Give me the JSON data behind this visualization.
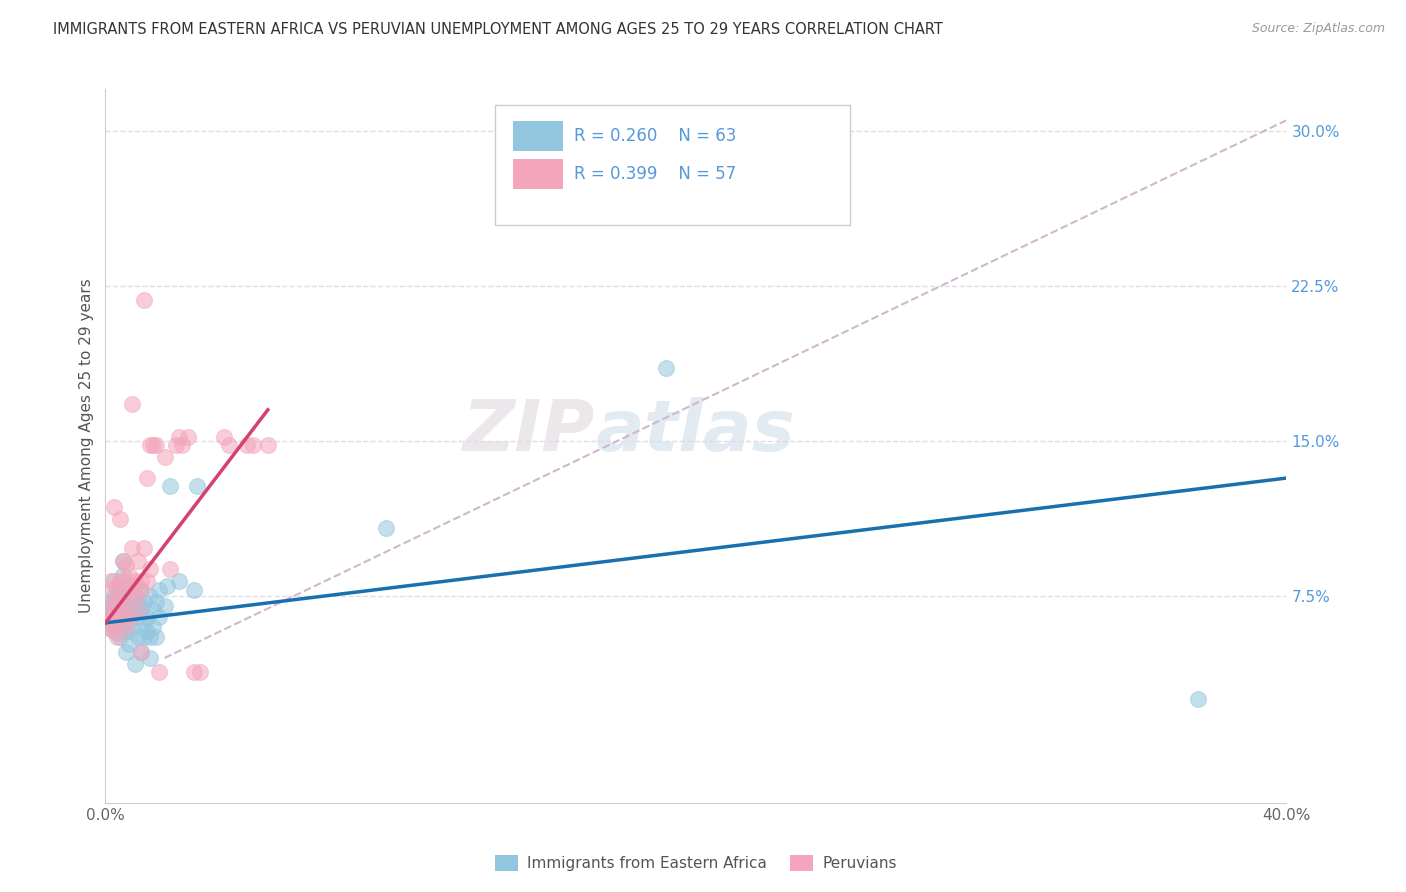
{
  "title": "IMMIGRANTS FROM EASTERN AFRICA VS PERUVIAN UNEMPLOYMENT AMONG AGES 25 TO 29 YEARS CORRELATION CHART",
  "source": "Source: ZipAtlas.com",
  "ylabel": "Unemployment Among Ages 25 to 29 years",
  "xlim": [
    0.0,
    0.4
  ],
  "ylim": [
    -0.025,
    0.32
  ],
  "xtick_positions": [
    0.0,
    0.08,
    0.16,
    0.24,
    0.32,
    0.4
  ],
  "xticklabels": [
    "0.0%",
    "",
    "",
    "",
    "",
    "40.0%"
  ],
  "yticks_right": [
    0.075,
    0.15,
    0.225,
    0.3
  ],
  "ytick_right_labels": [
    "7.5%",
    "15.0%",
    "22.5%",
    "30.0%"
  ],
  "legend_labels": [
    "Immigrants from Eastern Africa",
    "Peruvians"
  ],
  "blue_color": "#92c5de",
  "pink_color": "#f4a5bb",
  "blue_line_color": "#1a6faf",
  "pink_line_color": "#d44070",
  "dashed_line_color": "#d0b8cc",
  "blue_scatter": [
    [
      0.001,
      0.069
    ],
    [
      0.001,
      0.063
    ],
    [
      0.002,
      0.072
    ],
    [
      0.002,
      0.065
    ],
    [
      0.002,
      0.059
    ],
    [
      0.003,
      0.075
    ],
    [
      0.003,
      0.061
    ],
    [
      0.003,
      0.082
    ],
    [
      0.003,
      0.068
    ],
    [
      0.004,
      0.057
    ],
    [
      0.004,
      0.071
    ],
    [
      0.004,
      0.064
    ],
    [
      0.004,
      0.078
    ],
    [
      0.005,
      0.062
    ],
    [
      0.005,
      0.073
    ],
    [
      0.005,
      0.055
    ],
    [
      0.005,
      0.08
    ],
    [
      0.006,
      0.068
    ],
    [
      0.006,
      0.075
    ],
    [
      0.006,
      0.058
    ],
    [
      0.006,
      0.085
    ],
    [
      0.006,
      0.092
    ],
    [
      0.007,
      0.063
    ],
    [
      0.007,
      0.071
    ],
    [
      0.007,
      0.048
    ],
    [
      0.007,
      0.078
    ],
    [
      0.008,
      0.058
    ],
    [
      0.008,
      0.065
    ],
    [
      0.008,
      0.052
    ],
    [
      0.009,
      0.069
    ],
    [
      0.009,
      0.076
    ],
    [
      0.009,
      0.06
    ],
    [
      0.01,
      0.073
    ],
    [
      0.01,
      0.042
    ],
    [
      0.01,
      0.08
    ],
    [
      0.011,
      0.065
    ],
    [
      0.011,
      0.055
    ],
    [
      0.011,
      0.071
    ],
    [
      0.012,
      0.068
    ],
    [
      0.012,
      0.048
    ],
    [
      0.012,
      0.078
    ],
    [
      0.013,
      0.062
    ],
    [
      0.013,
      0.055
    ],
    [
      0.013,
      0.072
    ],
    [
      0.014,
      0.065
    ],
    [
      0.014,
      0.058
    ],
    [
      0.015,
      0.075
    ],
    [
      0.015,
      0.045
    ],
    [
      0.015,
      0.055
    ],
    [
      0.016,
      0.068
    ],
    [
      0.016,
      0.06
    ],
    [
      0.017,
      0.072
    ],
    [
      0.017,
      0.055
    ],
    [
      0.018,
      0.065
    ],
    [
      0.018,
      0.078
    ],
    [
      0.02,
      0.07
    ],
    [
      0.021,
      0.08
    ],
    [
      0.022,
      0.128
    ],
    [
      0.025,
      0.082
    ],
    [
      0.03,
      0.078
    ],
    [
      0.031,
      0.128
    ],
    [
      0.095,
      0.108
    ],
    [
      0.19,
      0.185
    ],
    [
      0.37,
      0.025
    ]
  ],
  "pink_scatter": [
    [
      0.001,
      0.068
    ],
    [
      0.001,
      0.06
    ],
    [
      0.002,
      0.078
    ],
    [
      0.002,
      0.065
    ],
    [
      0.002,
      0.082
    ],
    [
      0.003,
      0.118
    ],
    [
      0.003,
      0.072
    ],
    [
      0.003,
      0.065
    ],
    [
      0.003,
      0.058
    ],
    [
      0.004,
      0.072
    ],
    [
      0.004,
      0.08
    ],
    [
      0.004,
      0.062
    ],
    [
      0.004,
      0.055
    ],
    [
      0.005,
      0.112
    ],
    [
      0.005,
      0.082
    ],
    [
      0.005,
      0.068
    ],
    [
      0.006,
      0.092
    ],
    [
      0.006,
      0.075
    ],
    [
      0.006,
      0.065
    ],
    [
      0.007,
      0.082
    ],
    [
      0.007,
      0.09
    ],
    [
      0.007,
      0.072
    ],
    [
      0.007,
      0.06
    ],
    [
      0.008,
      0.085
    ],
    [
      0.008,
      0.065
    ],
    [
      0.009,
      0.168
    ],
    [
      0.009,
      0.098
    ],
    [
      0.009,
      0.078
    ],
    [
      0.01,
      0.082
    ],
    [
      0.01,
      0.075
    ],
    [
      0.011,
      0.092
    ],
    [
      0.011,
      0.068
    ],
    [
      0.012,
      0.082
    ],
    [
      0.012,
      0.048
    ],
    [
      0.012,
      0.078
    ],
    [
      0.013,
      0.218
    ],
    [
      0.013,
      0.098
    ],
    [
      0.014,
      0.082
    ],
    [
      0.014,
      0.132
    ],
    [
      0.015,
      0.088
    ],
    [
      0.015,
      0.148
    ],
    [
      0.016,
      0.148
    ],
    [
      0.017,
      0.148
    ],
    [
      0.018,
      0.038
    ],
    [
      0.02,
      0.142
    ],
    [
      0.022,
      0.088
    ],
    [
      0.024,
      0.148
    ],
    [
      0.025,
      0.152
    ],
    [
      0.026,
      0.148
    ],
    [
      0.028,
      0.152
    ],
    [
      0.03,
      0.038
    ],
    [
      0.032,
      0.038
    ],
    [
      0.04,
      0.152
    ],
    [
      0.042,
      0.148
    ],
    [
      0.048,
      0.148
    ],
    [
      0.05,
      0.148
    ],
    [
      0.055,
      0.148
    ]
  ],
  "watermark_zip": "ZIP",
  "watermark_atlas": "atlas",
  "background_color": "#ffffff",
  "grid_color": "#e0dde8"
}
